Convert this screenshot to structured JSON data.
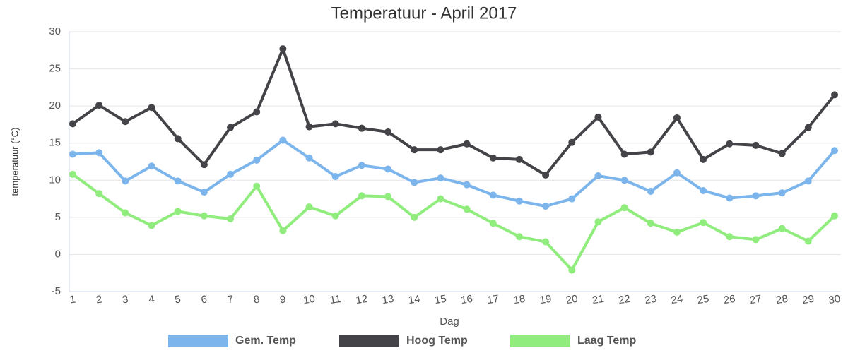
{
  "chart_data": {
    "type": "line",
    "title": "Temperatuur - April 2017",
    "x_label": "Dag",
    "y_label": "temperatuur (°C)",
    "categories": [
      "1",
      "2",
      "3",
      "4",
      "5",
      "6",
      "7",
      "8",
      "9",
      "10",
      "11",
      "12",
      "13",
      "14",
      "15",
      "16",
      "17",
      "18",
      "19",
      "20",
      "21",
      "22",
      "23",
      "24",
      "25",
      "26",
      "27",
      "28",
      "29",
      "30"
    ],
    "series": [
      {
        "name": "Gem. Temp",
        "color": "#7cb5ec",
        "values": [
          13.5,
          13.7,
          9.9,
          11.9,
          9.9,
          8.4,
          10.8,
          12.7,
          15.4,
          13.0,
          10.5,
          12.0,
          11.5,
          9.7,
          10.3,
          9.4,
          8.0,
          7.2,
          6.5,
          7.5,
          10.6,
          10.0,
          8.5,
          11.0,
          8.6,
          7.6,
          7.9,
          8.3,
          9.9,
          14.0
        ]
      },
      {
        "name": "Hoog Temp",
        "color": "#434348",
        "values": [
          17.6,
          20.1,
          17.9,
          19.8,
          15.6,
          12.1,
          17.1,
          19.2,
          27.7,
          17.2,
          17.6,
          17.0,
          16.5,
          14.1,
          14.1,
          14.9,
          13.0,
          12.8,
          10.7,
          15.1,
          18.5,
          13.5,
          13.8,
          18.4,
          12.8,
          14.9,
          14.7,
          13.6,
          17.1,
          21.5
        ]
      },
      {
        "name": "Laag Temp",
        "color": "#90ed7d",
        "values": [
          10.8,
          8.2,
          5.6,
          3.9,
          5.8,
          5.2,
          4.8,
          9.2,
          3.2,
          6.4,
          5.2,
          7.9,
          7.8,
          5.0,
          7.5,
          6.1,
          4.2,
          2.4,
          1.7,
          -2.1,
          4.4,
          6.3,
          4.2,
          3.0,
          4.3,
          2.4,
          2.0,
          3.5,
          1.8,
          5.2
        ]
      }
    ],
    "ylim": [
      -5,
      30
    ],
    "yticks": [
      -5,
      0,
      5,
      10,
      15,
      20,
      25,
      30
    ],
    "grid": true
  }
}
